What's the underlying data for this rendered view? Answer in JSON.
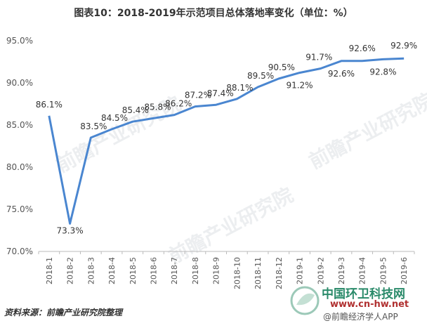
{
  "chart_data": {
    "type": "line",
    "title": "图表10：2018-2019年示范项目总体落地率变化（单位：%）",
    "categories": [
      "2018-1",
      "2018-2",
      "2018-3",
      "2018-4",
      "2018-5",
      "2018-6",
      "2018-7",
      "2018-8",
      "2018-9",
      "2018-10",
      "2018-11",
      "2018-12",
      "2019-1",
      "2019-2",
      "2019-3",
      "2019-4",
      "2019-5",
      "2019-6"
    ],
    "values": [
      86.1,
      73.3,
      83.5,
      84.5,
      85.4,
      85.8,
      86.2,
      87.2,
      87.4,
      88.1,
      89.5,
      90.5,
      91.2,
      91.7,
      92.6,
      92.6,
      92.8,
      92.9
    ],
    "data_labels": [
      "86.1%",
      "73.3%",
      "83.5%",
      "84.5%",
      "85.4%",
      "85.8%",
      "86.2%",
      "87.2%",
      "87.4%",
      "88.1%",
      "89.5%",
      "90.5%",
      "91.2%",
      "91.7%",
      "92.6%",
      "92.6%",
      "92.8%",
      "92.9%"
    ],
    "ylim": [
      70,
      95
    ],
    "yticks": [
      70,
      75,
      80,
      85,
      90,
      95
    ],
    "ytick_labels": [
      "70.0%",
      "75.0%",
      "80.0%",
      "85.0%",
      "90.0%",
      "95.0%"
    ],
    "line_color": "#4a86d0",
    "grid": false,
    "xlabel": "",
    "ylabel": ""
  },
  "source": "资料来源：前瞻产业研究院整理",
  "watermark": "前瞻产业研究院",
  "brand": {
    "name": "中国环卫科技网",
    "url": "www.cn-hw.net",
    "app": "@前瞻经济学人APP"
  }
}
